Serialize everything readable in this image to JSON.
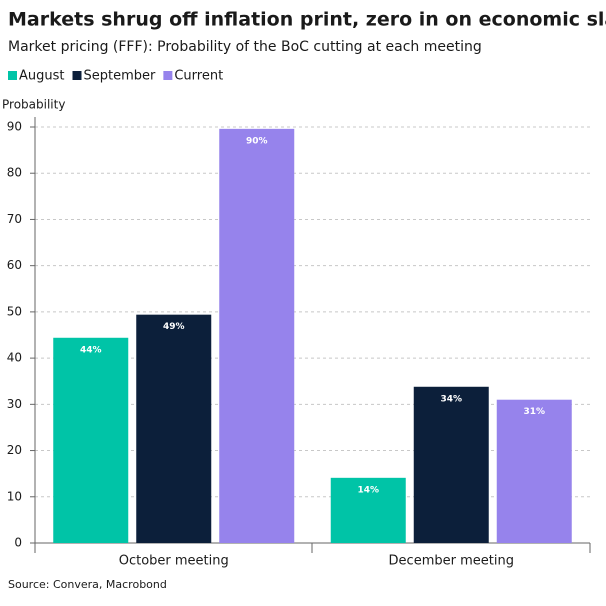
{
  "chart_data": {
    "type": "bar",
    "title": "Markets shrug off inflation print, zero in on economic slack",
    "subtitle": "Market pricing (FFF): Probability of the BoC cutting at each meeting",
    "y_label": "Probability",
    "source": "Source: Convera, Macrobond",
    "categories": [
      "October meeting",
      "December meeting"
    ],
    "series": [
      {
        "name": "August",
        "color": "#00c4a7",
        "values": [
          44.4,
          14.1
        ],
        "value_labels": [
          "44%",
          "14%"
        ]
      },
      {
        "name": "September",
        "color": "#0c1f3a",
        "values": [
          49.4,
          33.8
        ],
        "value_labels": [
          "49%",
          "34%"
        ]
      },
      {
        "name": "Current",
        "color": "#9683ec",
        "values": [
          89.6,
          31.0
        ],
        "value_labels": [
          "90%",
          "31%"
        ]
      }
    ],
    "ylim": [
      0,
      90
    ],
    "yticks": [
      0,
      10,
      20,
      30,
      40,
      50,
      60,
      70,
      80,
      90
    ],
    "grid": true
  }
}
